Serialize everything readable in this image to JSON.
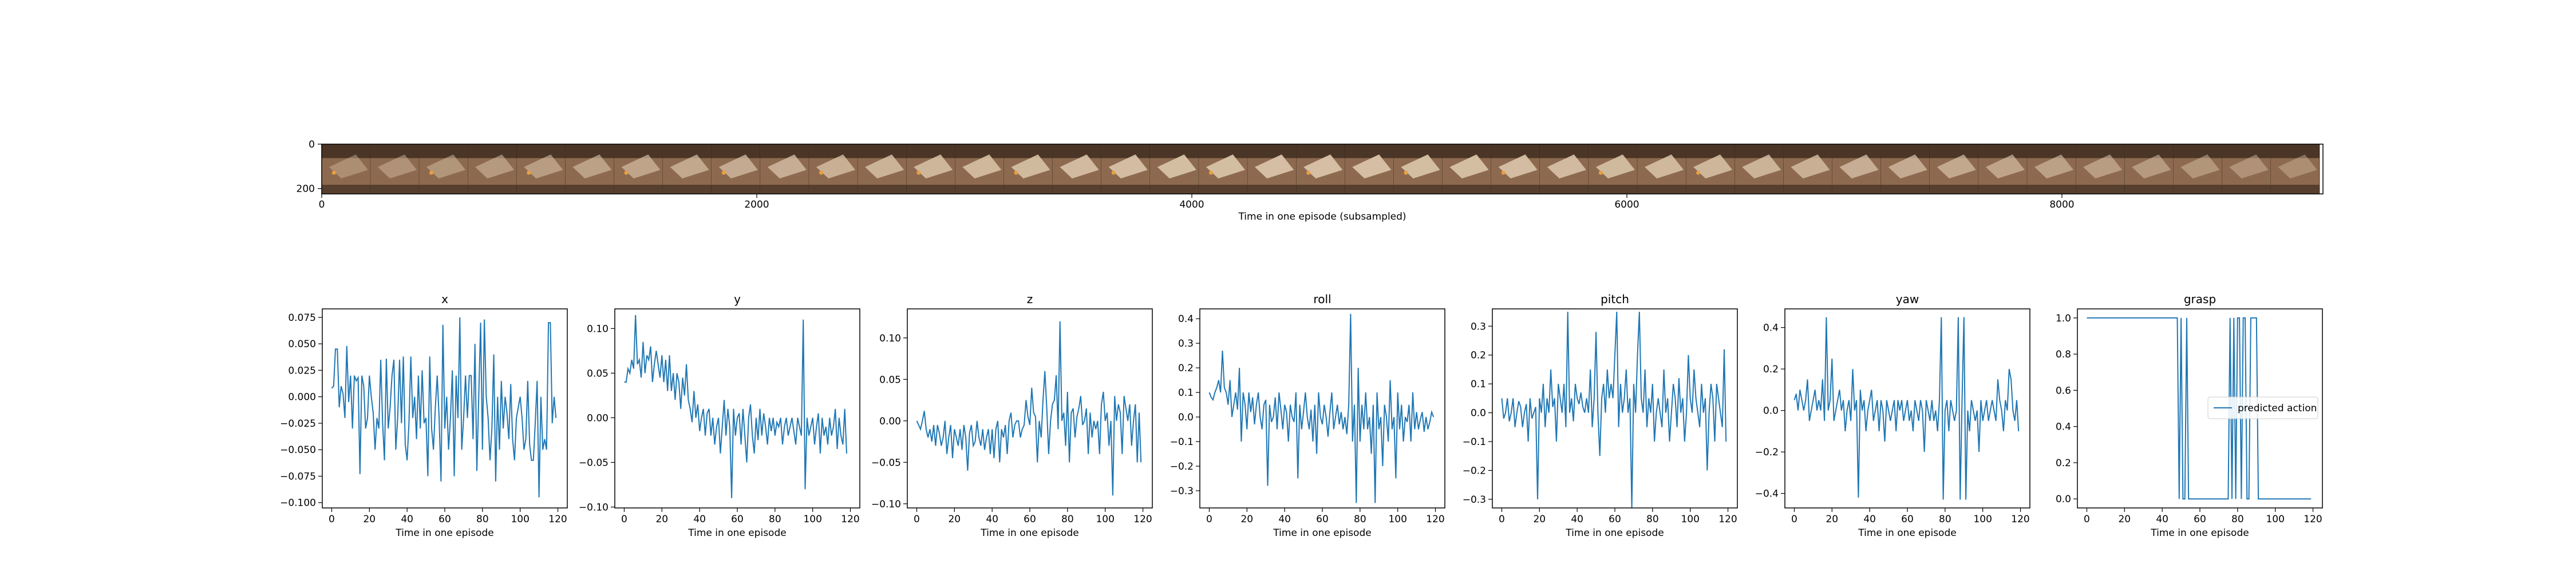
{
  "colors": {
    "line": "#1f77b4",
    "axis": "#000000",
    "strip_dark": "#4a3526",
    "strip_mid": "#8d6a4f",
    "strip_light": "#d9c3a8",
    "marker": "#e8a040"
  },
  "filmstrip": {
    "xlabel": "Time in one episode (subsampled)",
    "x_ticks": [
      "0",
      "2000",
      "4000",
      "6000",
      "8000"
    ],
    "x_tick_values": [
      0,
      2000,
      4000,
      6000,
      8000
    ],
    "xlim": [
      0,
      9200
    ],
    "y_ticks": [
      "0",
      "200"
    ],
    "y_tick_values": [
      0,
      200
    ],
    "ylim": [
      0,
      224
    ],
    "frame_count": 41,
    "frame_width": 224
  },
  "chart_data": [
    {
      "type": "line",
      "title": "x",
      "xlabel": "Time in one episode",
      "xlim": [
        -5,
        125
      ],
      "ylim": [
        -0.105,
        0.083
      ],
      "x_ticks": [
        "0",
        "20",
        "40",
        "60",
        "80",
        "100",
        "120"
      ],
      "x_tick_values": [
        0,
        20,
        40,
        60,
        80,
        100,
        120
      ],
      "y_ticks": [
        "−0.100",
        "−0.075",
        "−0.050",
        "−0.025",
        "0.000",
        "0.025",
        "0.050",
        "0.075"
      ],
      "y_tick_values": [
        -0.1,
        -0.075,
        -0.05,
        -0.025,
        0,
        0.025,
        0.05,
        0.075
      ],
      "values": [
        0.008,
        0.01,
        0.045,
        0.045,
        -0.01,
        0.01,
        0.003,
        -0.02,
        0.048,
        -0.005,
        0.02,
        -0.03,
        0.02,
        0.015,
        0.018,
        -0.073,
        0.02,
        0.01,
        -0.03,
        -0.02,
        0.02,
        0.0,
        -0.015,
        -0.05,
        -0.02,
        -0.03,
        0.035,
        -0.025,
        -0.06,
        0.036,
        -0.03,
        -0.01,
        0.02,
        0.035,
        -0.05,
        -0.02,
        0.035,
        -0.025,
        0.038,
        -0.045,
        -0.06,
        -0.025,
        0.038,
        -0.02,
        0.0,
        -0.04,
        0.02,
        -0.03,
        0.025,
        -0.025,
        -0.02,
        -0.075,
        0.038,
        -0.03,
        -0.05,
        -0.01,
        0.02,
        -0.02,
        -0.08,
        0.068,
        -0.03,
        0.0,
        -0.05,
        -0.02,
        0.025,
        -0.075,
        0.02,
        -0.02,
        0.075,
        -0.05,
        -0.02,
        0.02,
        -0.02,
        0.02,
        0.02,
        -0.04,
        0.05,
        -0.07,
        0.0,
        0.07,
        -0.05,
        0.073,
        0.0,
        -0.02,
        -0.06,
        -0.03,
        0.04,
        -0.08,
        0.0,
        -0.05,
        0.015,
        -0.03,
        0.0,
        -0.015,
        -0.04,
        0.012,
        -0.04,
        -0.06,
        -0.02,
        -0.01,
        0.0,
        -0.02,
        -0.05,
        -0.04,
        0.015,
        -0.045,
        -0.06,
        -0.06,
        -0.025,
        0.015,
        -0.095,
        0.0,
        -0.05,
        -0.04,
        -0.05,
        0.07,
        0.07,
        -0.025,
        0.0,
        -0.02
      ],
      "series_name": "predicted action"
    },
    {
      "type": "line",
      "title": "y",
      "xlabel": "Time in one episode",
      "xlim": [
        -5,
        125
      ],
      "ylim": [
        -0.101,
        0.122
      ],
      "x_ticks": [
        "0",
        "20",
        "40",
        "60",
        "80",
        "100",
        "120"
      ],
      "x_tick_values": [
        0,
        20,
        40,
        60,
        80,
        100,
        120
      ],
      "y_ticks": [
        "−0.10",
        "−0.05",
        "0.00",
        "0.05",
        "0.10"
      ],
      "y_tick_values": [
        -0.1,
        -0.05,
        0,
        0.05,
        0.1
      ],
      "values": [
        0.04,
        0.04,
        0.055,
        0.05,
        0.065,
        0.055,
        0.115,
        0.06,
        0.065,
        0.045,
        0.085,
        0.05,
        0.07,
        0.065,
        0.08,
        0.04,
        0.06,
        0.075,
        0.06,
        0.045,
        0.07,
        0.04,
        0.065,
        0.03,
        0.07,
        0.03,
        0.05,
        0.02,
        0.05,
        0.04,
        0.01,
        0.045,
        0.025,
        0.06,
        0.02,
        0.01,
        -0.005,
        0.03,
        0.0,
        0.015,
        -0.015,
        0.0,
        0.01,
        -0.02,
        0.005,
        0.01,
        -0.02,
        0.0,
        -0.03,
        -0.01,
        0.0,
        -0.04,
        -0.01,
        0.02,
        -0.02,
        0.01,
        -0.01,
        -0.09,
        0.01,
        -0.02,
        0.0,
        0.005,
        -0.03,
        0.01,
        -0.02,
        -0.05,
        0.0,
        0.015,
        -0.02,
        -0.04,
        0.0,
        -0.025,
        0.01,
        -0.02,
        0.005,
        -0.01,
        -0.03,
        0.0,
        -0.015,
        0.0,
        -0.02,
        -0.005,
        -0.01,
        0.0,
        -0.03,
        -0.01,
        0.0,
        -0.02,
        -0.01,
        0.0,
        -0.015,
        -0.03,
        0.0,
        -0.01,
        -0.02,
        0.11,
        -0.08,
        0.0,
        -0.02,
        -0.01,
        0.0,
        -0.03,
        -0.01,
        0.005,
        -0.04,
        0.0,
        -0.02,
        -0.01,
        -0.03,
        0.0,
        -0.02,
        -0.01,
        0.01,
        -0.035,
        0.0,
        -0.02,
        -0.03,
        0.01,
        -0.04
      ],
      "series_name": "predicted action"
    },
    {
      "type": "line",
      "title": "z",
      "xlabel": "Time in one episode",
      "xlim": [
        -5,
        125
      ],
      "ylim": [
        -0.105,
        0.135
      ],
      "x_ticks": [
        "0",
        "20",
        "40",
        "60",
        "80",
        "100",
        "120"
      ],
      "x_tick_values": [
        0,
        20,
        40,
        60,
        80,
        100,
        120
      ],
      "y_ticks": [
        "−0.10",
        "−0.05",
        "0.00",
        "0.05",
        "0.10"
      ],
      "y_tick_values": [
        -0.1,
        -0.05,
        0,
        0.05,
        0.1
      ],
      "values": [
        0.0,
        -0.005,
        -0.01,
        0.0,
        0.012,
        -0.01,
        -0.02,
        -0.01,
        -0.025,
        -0.005,
        -0.03,
        -0.005,
        -0.015,
        -0.03,
        -0.02,
        0.0,
        -0.04,
        -0.02,
        -0.005,
        -0.045,
        -0.01,
        -0.02,
        -0.03,
        -0.01,
        -0.035,
        -0.005,
        -0.02,
        -0.06,
        -0.015,
        -0.005,
        -0.03,
        -0.025,
        0.0,
        -0.02,
        -0.03,
        -0.01,
        -0.035,
        -0.02,
        -0.01,
        -0.04,
        -0.01,
        -0.045,
        -0.01,
        0.0,
        -0.05,
        -0.01,
        -0.02,
        -0.005,
        -0.04,
        0.0,
        0.01,
        -0.02,
        -0.005,
        0.0,
        0.0,
        -0.02,
        -0.01,
        -0.005,
        0.025,
        0.005,
        -0.005,
        0.04,
        0.01,
        0.005,
        -0.05,
        0.0,
        -0.02,
        0.025,
        0.06,
        0.015,
        -0.04,
        0.0,
        0.02,
        0.025,
        0.055,
        -0.01,
        0.12,
        0.0,
        0.01,
        -0.03,
        0.035,
        -0.05,
        0.01,
        0.015,
        -0.02,
        0.005,
        0.015,
        0.03,
        -0.005,
        0.0,
        0.015,
        -0.04,
        0.01,
        -0.02,
        0.0,
        -0.01,
        0.0,
        -0.04,
        0.02,
        0.035,
        0.0,
        0.01,
        -0.03,
        0.0,
        -0.09,
        0.03,
        0.0,
        0.02,
        0.01,
        -0.04,
        0.03,
        0.015,
        0.0,
        0.02,
        -0.03,
        0.0,
        0.02,
        -0.05,
        0.01,
        -0.05
      ],
      "series_name": "predicted action"
    },
    {
      "type": "line",
      "title": "roll",
      "xlabel": "Time in one episode",
      "xlim": [
        -5,
        125
      ],
      "ylim": [
        -0.37,
        0.44
      ],
      "x_ticks": [
        "0",
        "20",
        "40",
        "60",
        "80",
        "100",
        "120"
      ],
      "x_tick_values": [
        0,
        20,
        40,
        60,
        80,
        100,
        120
      ],
      "y_ticks": [
        "−0.3",
        "−0.2",
        "−0.1",
        "0.0",
        "0.1",
        "0.2",
        "0.3",
        "0.4"
      ],
      "y_tick_values": [
        -0.3,
        -0.2,
        -0.1,
        0,
        0.1,
        0.2,
        0.3,
        0.4
      ],
      "values": [
        0.1,
        0.08,
        0.07,
        0.1,
        0.12,
        0.15,
        0.1,
        0.27,
        0.12,
        0.1,
        0.05,
        0.15,
        0.0,
        0.05,
        0.1,
        0.03,
        0.2,
        -0.1,
        0.1,
        0.05,
        -0.05,
        0.1,
        0.02,
        0.08,
        -0.03,
        0.05,
        0.1,
        0.0,
        -0.05,
        0.05,
        0.07,
        -0.28,
        0.05,
        -0.02,
        0.0,
        0.08,
        -0.05,
        0.1,
        0.03,
        -0.05,
        0.05,
        0.02,
        -0.1,
        0.05,
        0.0,
        -0.02,
        0.1,
        -0.25,
        0.05,
        -0.05,
        0.02,
        0.1,
        0.0,
        -0.05,
        0.03,
        -0.1,
        0.05,
        -0.15,
        0.1,
        0.0,
        -0.03,
        0.05,
        0.0,
        -0.08,
        0.02,
        0.1,
        -0.05,
        0.0,
        0.05,
        -0.03,
        0.02,
        -0.05,
        0.0,
        -0.07,
        0.05,
        0.42,
        -0.1,
        0.05,
        -0.35,
        0.2,
        -0.1,
        0.05,
        -0.05,
        0.1,
        -0.05,
        0.0,
        -0.15,
        0.05,
        -0.35,
        0.1,
        -0.05,
        0.0,
        -0.2,
        0.05,
        0.0,
        -0.1,
        0.15,
        -0.05,
        0.0,
        -0.25,
        0.1,
        -0.05,
        0.05,
        -0.1,
        0.0,
        -0.02,
        0.05,
        -0.1,
        0.1,
        -0.05,
        0.02,
        -0.05,
        -0.01,
        0.02,
        -0.06,
        0.0,
        -0.05,
        -0.02,
        0.02,
        0.0
      ],
      "series_name": "predicted action"
    },
    {
      "type": "line",
      "title": "pitch",
      "xlabel": "Time in one episode",
      "xlim": [
        -5,
        125
      ],
      "ylim": [
        -0.33,
        0.36
      ],
      "x_ticks": [
        "0",
        "20",
        "40",
        "60",
        "80",
        "100",
        "120"
      ],
      "x_tick_values": [
        0,
        20,
        40,
        60,
        80,
        100,
        120
      ],
      "y_ticks": [
        "−0.3",
        "−0.2",
        "−0.1",
        "0.0",
        "0.1",
        "0.2",
        "0.3"
      ],
      "y_tick_values": [
        -0.3,
        -0.2,
        -0.1,
        0,
        0.1,
        0.2,
        0.3
      ],
      "values": [
        0.05,
        -0.02,
        0.0,
        0.05,
        -0.03,
        0.0,
        0.05,
        -0.05,
        0.0,
        0.04,
        0.02,
        -0.05,
        0.0,
        0.03,
        -0.1,
        0.05,
        -0.02,
        0.0,
        0.02,
        -0.3,
        0.05,
        0.0,
        0.1,
        -0.05,
        0.05,
        0.0,
        0.15,
        0.02,
        0.05,
        -0.1,
        0.1,
        0.05,
        0.0,
        0.1,
        -0.05,
        0.35,
        0.0,
        0.05,
        -0.03,
        0.1,
        0.05,
        0.03,
        0.07,
        0.02,
        0.0,
        0.05,
        0.0,
        0.15,
        -0.05,
        0.05,
        0.28,
        0.0,
        -0.15,
        0.05,
        0.1,
        0.0,
        0.15,
        0.05,
        0.1,
        0.05,
        0.2,
        0.35,
        -0.05,
        0.1,
        0.0,
        0.05,
        0.15,
        0.0,
        0.05,
        -0.33,
        0.1,
        0.0,
        0.2,
        0.35,
        0.05,
        0.0,
        0.15,
        -0.05,
        0.05,
        0.0,
        0.1,
        -0.1,
        0.0,
        0.05,
        0.0,
        -0.05,
        0.15,
        0.0,
        0.05,
        -0.1,
        0.0,
        0.1,
        0.05,
        -0.05,
        0.12,
        0.0,
        0.05,
        -0.1,
        0.0,
        0.2,
        0.05,
        0.0,
        0.15,
        0.05,
        0.0,
        -0.05,
        0.1,
        0.0,
        0.05,
        -0.2,
        0.0,
        0.1,
        0.05,
        -0.1,
        0.1,
        0.05,
        0.0,
        -0.05,
        0.22,
        -0.1
      ],
      "series_name": "predicted action"
    },
    {
      "type": "line",
      "title": "yaw",
      "xlabel": "Time in one episode",
      "xlim": [
        -5,
        125
      ],
      "ylim": [
        -0.47,
        0.49
      ],
      "x_ticks": [
        "0",
        "20",
        "40",
        "60",
        "80",
        "100",
        "120"
      ],
      "x_tick_values": [
        0,
        20,
        40,
        60,
        80,
        100,
        120
      ],
      "y_ticks": [
        "−0.4",
        "−0.2",
        "0.0",
        "0.2",
        "0.4"
      ],
      "y_tick_values": [
        -0.4,
        -0.2,
        0,
        0.2,
        0.4
      ],
      "values": [
        0.05,
        0.08,
        0.0,
        0.1,
        0.05,
        0.0,
        0.05,
        0.15,
        -0.05,
        0.0,
        0.05,
        0.1,
        0.0,
        0.05,
        0.0,
        0.15,
        -0.05,
        0.45,
        0.0,
        0.05,
        0.25,
        -0.05,
        0.0,
        0.05,
        0.1,
        0.0,
        0.05,
        -0.1,
        0.0,
        0.05,
        -0.05,
        0.2,
        0.0,
        0.05,
        -0.42,
        0.1,
        0.0,
        0.05,
        -0.1,
        0.0,
        0.05,
        0.1,
        -0.05,
        0.0,
        0.05,
        -0.1,
        0.05,
        0.0,
        -0.15,
        0.05,
        0.0,
        -0.05,
        0.0,
        0.05,
        -0.1,
        0.05,
        0.0,
        0.05,
        -0.05,
        0.0,
        0.05,
        -0.05,
        0.0,
        -0.1,
        0.05,
        0.0,
        -0.05,
        0.05,
        0.0,
        -0.2,
        0.05,
        0.0,
        -0.05,
        0.05,
        -0.05,
        0.0,
        -0.1,
        0.05,
        0.45,
        -0.43,
        0.0,
        0.05,
        -0.1,
        0.05,
        0.0,
        -0.05,
        0.0,
        0.45,
        -0.43,
        0.05,
        0.45,
        -0.43,
        0.0,
        -0.1,
        0.05,
        0.0,
        -0.05,
        0.0,
        -0.2,
        0.05,
        -0.05,
        0.0,
        0.05,
        -0.05,
        0.0,
        0.05,
        0.0,
        -0.05,
        0.15,
        0.05,
        0.0,
        -0.1,
        0.05,
        0.0,
        0.2,
        0.15,
        0.0,
        -0.05,
        0.05,
        -0.1
      ],
      "series_name": "predicted action"
    },
    {
      "type": "line",
      "title": "grasp",
      "xlabel": "Time in one episode",
      "xlim": [
        -5,
        125
      ],
      "ylim": [
        -0.05,
        1.05
      ],
      "x_ticks": [
        "0",
        "20",
        "40",
        "60",
        "80",
        "100",
        "120"
      ],
      "x_tick_values": [
        0,
        20,
        40,
        60,
        80,
        100,
        120
      ],
      "y_ticks": [
        "0.0",
        "0.2",
        "0.4",
        "0.6",
        "0.8",
        "1.0"
      ],
      "y_tick_values": [
        0,
        0.2,
        0.4,
        0.6,
        0.8,
        1
      ],
      "values": [
        1,
        1,
        1,
        1,
        1,
        1,
        1,
        1,
        1,
        1,
        1,
        1,
        1,
        1,
        1,
        1,
        1,
        1,
        1,
        1,
        1,
        1,
        1,
        1,
        1,
        1,
        1,
        1,
        1,
        1,
        1,
        1,
        1,
        1,
        1,
        1,
        1,
        1,
        1,
        1,
        1,
        1,
        1,
        1,
        1,
        1,
        1,
        1,
        1,
        0,
        1,
        0,
        0,
        1,
        0,
        0,
        0,
        0,
        0,
        0,
        0,
        0,
        0,
        0,
        0,
        0,
        0,
        0,
        0,
        0,
        0,
        0,
        0,
        0,
        0,
        0,
        1,
        0,
        1,
        0,
        1,
        1,
        0,
        1,
        1,
        0,
        0,
        1,
        1,
        1,
        1,
        0,
        0,
        0,
        0,
        0,
        0,
        0,
        0,
        0,
        0,
        0,
        0,
        0,
        0,
        0,
        0,
        0,
        0,
        0,
        0,
        0,
        0,
        0,
        0,
        0,
        0,
        0,
        0,
        0
      ],
      "series_name": "predicted action",
      "legend": "center-right"
    }
  ]
}
